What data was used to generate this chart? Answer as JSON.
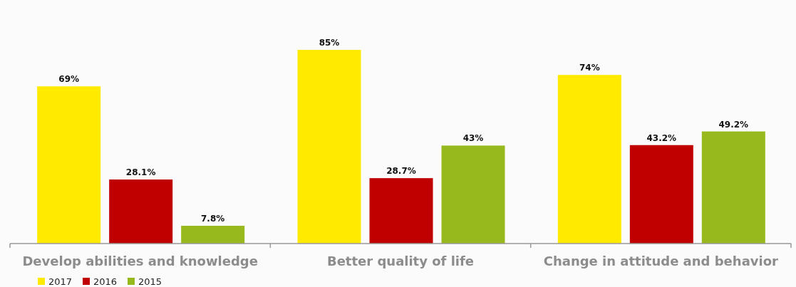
{
  "chart_data": {
    "type": "bar",
    "categories": [
      "Develop abilities and knowledge",
      "Better quality of life",
      "Change in attitude and behavior"
    ],
    "series": [
      {
        "name": "2017",
        "color": "#ffea00",
        "values": [
          69,
          85,
          74
        ],
        "value_labels": [
          "69%",
          "85%",
          "74%"
        ]
      },
      {
        "name": "2016",
        "color": "#c00000",
        "values": [
          28.1,
          28.7,
          43.2
        ],
        "value_labels": [
          "28.1%",
          "28.7%",
          "43.2%"
        ]
      },
      {
        "name": "2015",
        "color": "#97b91e",
        "values": [
          7.8,
          43,
          49.2
        ],
        "value_labels": [
          "7.8%",
          "43%",
          "49.2%"
        ]
      }
    ],
    "legend": "bottom left"
  }
}
